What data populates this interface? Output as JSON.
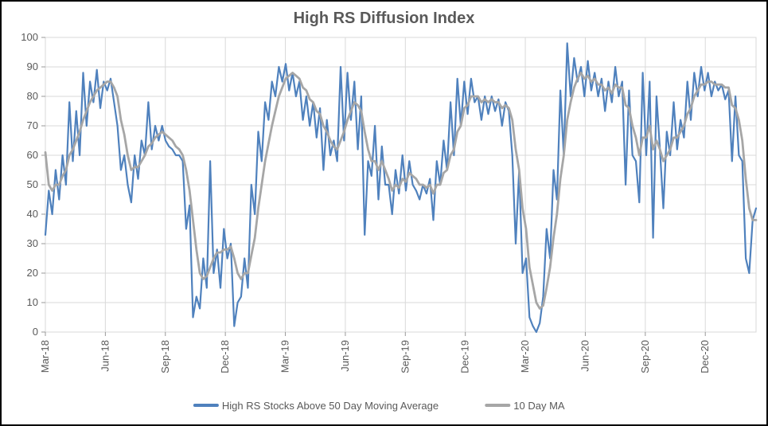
{
  "chart": {
    "type": "line",
    "title": "High RS Diffusion Index",
    "title_fontsize": 20,
    "title_fontweight": "bold",
    "title_color": "#595959",
    "background_color": "#ffffff",
    "border_color": "#000000",
    "plot_border_color": "#d9d9d9",
    "grid_color": "#d9d9d9",
    "axis_label_color": "#595959",
    "axis_label_fontsize": 13,
    "yaxis": {
      "min": 0,
      "max": 100,
      "step": 10
    },
    "xaxis": {
      "n": 155,
      "labels": [
        {
          "index": 0,
          "text": "Mar-18"
        },
        {
          "index": 13,
          "text": "Jun-18"
        },
        {
          "index": 26,
          "text": "Sep-18"
        },
        {
          "index": 39,
          "text": "Dec-18"
        },
        {
          "index": 52,
          "text": "Mar-19"
        },
        {
          "index": 65,
          "text": "Jun-19"
        },
        {
          "index": 78,
          "text": "Sep-19"
        },
        {
          "index": 91,
          "text": "Dec-19"
        },
        {
          "index": 104,
          "text": "Mar-20"
        },
        {
          "index": 117,
          "text": "Jun-20"
        },
        {
          "index": 130,
          "text": "Sep-20"
        },
        {
          "index": 143,
          "text": "Dec-20"
        }
      ]
    },
    "legend": {
      "fontsize": 13,
      "color": "#595959",
      "items": [
        {
          "label": "High RS Stocks Above 50 Day Moving Average",
          "color": "#4f81bd",
          "width": 4
        },
        {
          "label": "10 Day MA",
          "color": "#a6a6a6",
          "width": 4
        }
      ]
    },
    "series": [
      {
        "name": "High RS Stocks Above 50 Day Moving Average",
        "color": "#4f81bd",
        "width": 2.2,
        "data": [
          33,
          48,
          40,
          55,
          45,
          60,
          50,
          78,
          58,
          75,
          60,
          88,
          70,
          85,
          78,
          89,
          76,
          85,
          82,
          86,
          78,
          70,
          55,
          60,
          50,
          44,
          60,
          52,
          65,
          60,
          78,
          62,
          70,
          65,
          70,
          65,
          63,
          62,
          60,
          60,
          58,
          35,
          43,
          5,
          12,
          8,
          25,
          15,
          58,
          20,
          28,
          15,
          35,
          25,
          30,
          2,
          10,
          12,
          25,
          15,
          50,
          40,
          68,
          58,
          78,
          72,
          85,
          80,
          90,
          85,
          91,
          82,
          88,
          80,
          85,
          72,
          80,
          70,
          78,
          66,
          76,
          55,
          72,
          60,
          65,
          58,
          90,
          65,
          88,
          72,
          85,
          62,
          80,
          33,
          58,
          53,
          70,
          45,
          63,
          50,
          50,
          40,
          55,
          47,
          60,
          48,
          58,
          50,
          48,
          45,
          50,
          47,
          52,
          38,
          58,
          50,
          65,
          55,
          78,
          60,
          86,
          70,
          85,
          74,
          86,
          78,
          80,
          72,
          80,
          74,
          80,
          75,
          79,
          70,
          78,
          75,
          60,
          30,
          55,
          20,
          25,
          5,
          2,
          0,
          3,
          12,
          35,
          25,
          55,
          45,
          82,
          60,
          98,
          80,
          93,
          85,
          90,
          80,
          92,
          82,
          88,
          80,
          86,
          75,
          85,
          78,
          90,
          80,
          85,
          50,
          82,
          60,
          58,
          44,
          88,
          60,
          85,
          32,
          80,
          62,
          42,
          68,
          60,
          78,
          62,
          72,
          66,
          85,
          72,
          88,
          80,
          90,
          82,
          88,
          80,
          85,
          82,
          84,
          79,
          82,
          58,
          80,
          60,
          58,
          25,
          20,
          38,
          42
        ]
      },
      {
        "name": "10 Day MA",
        "color": "#a6a6a6",
        "width": 2.8,
        "data": [
          61,
          50,
          48,
          50,
          50,
          53,
          55,
          60,
          62,
          65,
          68,
          72,
          75,
          78,
          80,
          82,
          83,
          84,
          85,
          85,
          83,
          80,
          72,
          67,
          60,
          55,
          56,
          56,
          58,
          60,
          63,
          64,
          66,
          67,
          68,
          67,
          66,
          65,
          63,
          62,
          60,
          55,
          48,
          38,
          28,
          20,
          18,
          19,
          22,
          25,
          27,
          27,
          28,
          28,
          29,
          25,
          20,
          18,
          20,
          20,
          26,
          32,
          42,
          50,
          58,
          64,
          70,
          75,
          80,
          83,
          86,
          87,
          88,
          87,
          86,
          83,
          82,
          79,
          78,
          75,
          74,
          70,
          68,
          65,
          63,
          62,
          65,
          68,
          72,
          75,
          78,
          77,
          75,
          68,
          62,
          58,
          58,
          55,
          58,
          55,
          52,
          48,
          50,
          49,
          52,
          51,
          54,
          53,
          52,
          50,
          50,
          49,
          50,
          47,
          50,
          50,
          54,
          55,
          60,
          62,
          68,
          70,
          76,
          77,
          80,
          80,
          80,
          78,
          79,
          78,
          79,
          78,
          78,
          76,
          77,
          76,
          72,
          62,
          55,
          42,
          35,
          22,
          16,
          10,
          8,
          9,
          15,
          22,
          32,
          40,
          52,
          60,
          72,
          78,
          83,
          86,
          88,
          86,
          87,
          85,
          86,
          84,
          84,
          82,
          83,
          81,
          84,
          83,
          83,
          77,
          76,
          70,
          66,
          60,
          66,
          66,
          70,
          62,
          65,
          62,
          58,
          60,
          62,
          66,
          66,
          68,
          70,
          74,
          76,
          80,
          82,
          84,
          84,
          85,
          85,
          84,
          84,
          84,
          83,
          83,
          77,
          76,
          72,
          65,
          52,
          42,
          38,
          38
        ]
      }
    ]
  }
}
